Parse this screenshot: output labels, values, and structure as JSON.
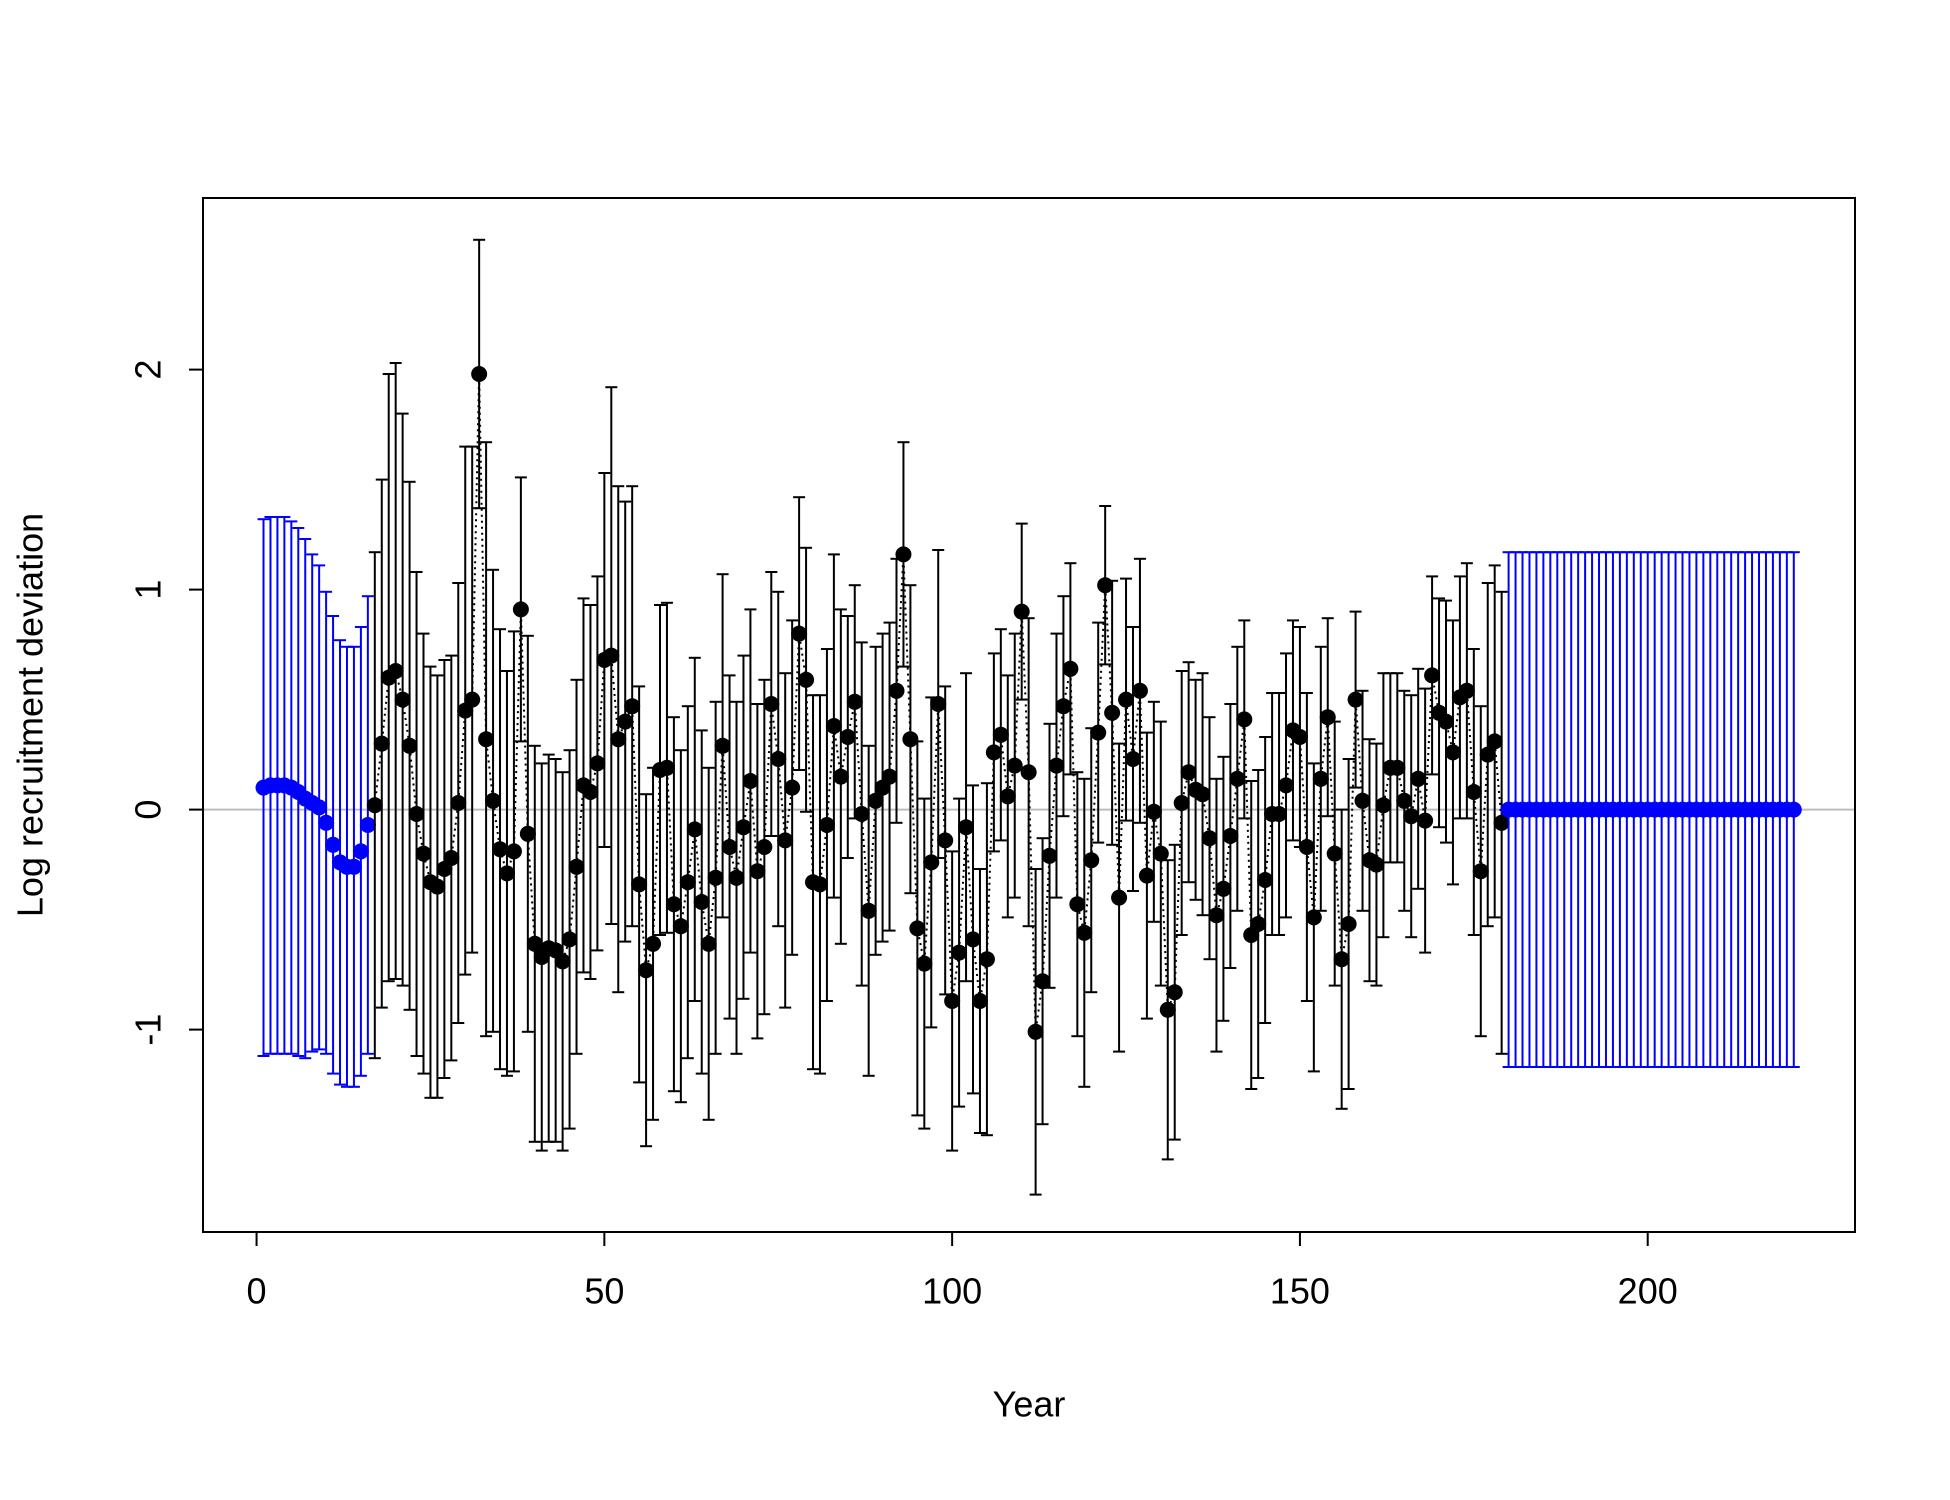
{
  "chart_data": {
    "type": "errorbar",
    "x_label": "Year",
    "y_label": "Log recruitment deviation",
    "xlim": [
      -7.7,
      229.8
    ],
    "ylim": [
      -1.92,
      2.78
    ],
    "xticks": [
      0,
      50,
      100,
      150,
      200
    ],
    "yticks": [
      -1,
      0,
      1,
      2
    ],
    "hline": 0,
    "hline_color": "#bebebe",
    "series": [
      {
        "color": "#0000ff",
        "line": false,
        "x": [
          1,
          2,
          3,
          4,
          5,
          6,
          7,
          8,
          9,
          10,
          11,
          12,
          13,
          14,
          15,
          16
        ],
        "values": [
          0.1,
          0.11,
          0.11,
          0.11,
          0.1,
          0.08,
          0.05,
          0.03,
          0.01,
          -0.06,
          -0.16,
          -0.24,
          -0.26,
          -0.26,
          -0.19,
          -0.07
        ],
        "errors": [
          1.22,
          1.22,
          1.22,
          1.22,
          1.21,
          1.2,
          1.18,
          1.13,
          1.1,
          1.05,
          1.04,
          1.01,
          1.0,
          1.0,
          1.02,
          1.04
        ]
      },
      {
        "color": "#000000",
        "line": true,
        "linestyle": "dotted",
        "x": [
          17,
          18,
          19,
          20,
          21,
          22,
          23,
          24,
          25,
          26,
          27,
          28,
          29,
          30,
          31,
          32,
          33,
          34,
          35,
          36,
          37,
          38,
          39,
          40,
          41,
          42,
          43,
          44,
          45,
          46,
          47,
          48,
          49,
          50,
          51,
          52,
          53,
          54,
          55,
          56,
          57,
          58,
          59,
          60,
          61,
          62,
          63,
          64,
          65,
          66,
          67,
          68,
          69,
          70,
          71,
          72,
          73,
          74,
          75,
          76,
          77,
          78,
          79,
          80,
          81,
          82,
          83,
          84,
          85,
          86,
          87,
          88,
          89,
          90,
          91,
          92,
          93,
          94,
          95,
          96,
          97,
          98,
          99,
          100,
          101,
          102,
          103,
          104,
          105,
          106,
          107,
          108,
          109,
          110,
          111,
          112,
          113,
          114,
          115,
          116,
          117,
          118,
          119,
          120,
          121,
          122,
          123,
          124,
          125,
          126,
          127,
          128,
          129,
          130,
          131,
          132,
          133,
          134,
          135,
          136,
          137,
          138,
          139,
          140,
          141,
          142,
          143,
          144,
          145,
          146,
          147,
          148,
          149,
          150,
          151,
          152,
          153,
          154,
          155,
          156,
          157,
          158,
          159,
          160,
          161,
          162,
          163,
          164,
          165,
          166,
          167,
          168,
          169,
          170,
          171,
          172,
          173,
          174,
          175,
          176,
          177,
          178,
          179
        ],
        "values": [
          0.02,
          0.3,
          0.6,
          0.63,
          0.5,
          0.29,
          -0.02,
          -0.2,
          -0.33,
          -0.35,
          -0.27,
          -0.22,
          0.03,
          0.45,
          0.5,
          1.98,
          0.32,
          0.04,
          -0.18,
          -0.29,
          -0.19,
          0.91,
          -0.11,
          -0.61,
          -0.67,
          -0.63,
          -0.64,
          -0.69,
          -0.59,
          -0.26,
          0.11,
          0.08,
          0.21,
          0.68,
          0.7,
          0.32,
          0.4,
          0.47,
          -0.34,
          -0.73,
          -0.61,
          0.18,
          0.19,
          -0.43,
          -0.53,
          -0.33,
          -0.09,
          -0.42,
          -0.61,
          -0.31,
          0.29,
          -0.17,
          -0.31,
          -0.08,
          0.13,
          -0.28,
          -0.17,
          0.48,
          0.23,
          -0.14,
          0.1,
          0.8,
          0.59,
          -0.33,
          -0.34,
          -0.07,
          0.38,
          0.15,
          0.33,
          0.49,
          -0.02,
          -0.46,
          0.04,
          0.1,
          0.15,
          0.54,
          1.16,
          0.32,
          -0.54,
          -0.7,
          -0.24,
          0.48,
          -0.14,
          -0.87,
          -0.65,
          -0.08,
          -0.59,
          -0.87,
          -0.68,
          0.26,
          0.34,
          0.06,
          0.2,
          0.9,
          0.17,
          -1.01,
          -0.78,
          -0.21,
          0.2,
          0.47,
          0.64,
          -0.43,
          -0.56,
          -0.23,
          0.35,
          1.02,
          0.44,
          -0.4,
          0.5,
          0.23,
          0.54,
          -0.3,
          -0.01,
          -0.2,
          -0.91,
          -0.83,
          0.03,
          0.17,
          0.09,
          0.07,
          -0.13,
          -0.48,
          -0.36,
          -0.12,
          0.14,
          0.41,
          -0.57,
          -0.52,
          -0.32,
          -0.02,
          -0.02,
          0.11,
          0.36,
          0.33,
          -0.17,
          -0.49,
          0.14,
          0.42,
          -0.2,
          -0.68,
          -0.52,
          0.5,
          0.04,
          -0.23,
          -0.25,
          0.02,
          0.19,
          0.19,
          0.04,
          -0.03,
          0.14,
          -0.05,
          0.61,
          0.44,
          0.4,
          0.26,
          0.51,
          0.54,
          0.08,
          -0.28,
          0.25,
          0.31,
          -0.06
        ],
        "errors": [
          1.15,
          1.2,
          1.38,
          1.4,
          1.3,
          1.2,
          1.1,
          1.0,
          0.98,
          0.96,
          0.95,
          0.92,
          1.0,
          1.2,
          1.15,
          0.61,
          1.35,
          1.05,
          1.0,
          0.92,
          1.0,
          0.6,
          0.9,
          0.9,
          0.88,
          0.88,
          0.87,
          0.86,
          0.86,
          0.85,
          0.85,
          0.85,
          0.85,
          0.85,
          1.22,
          1.15,
          1.0,
          1.0,
          0.9,
          0.8,
          0.8,
          0.75,
          0.75,
          0.85,
          0.8,
          0.8,
          0.78,
          0.78,
          0.8,
          0.8,
          0.78,
          0.78,
          0.8,
          0.78,
          0.78,
          0.76,
          0.76,
          0.6,
          0.76,
          0.76,
          0.76,
          0.62,
          0.6,
          0.85,
          0.86,
          0.8,
          0.78,
          0.76,
          0.55,
          0.53,
          0.78,
          0.75,
          0.7,
          0.7,
          0.7,
          0.6,
          0.51,
          0.7,
          0.85,
          0.75,
          0.75,
          0.7,
          0.7,
          0.68,
          0.7,
          0.7,
          0.7,
          0.6,
          0.8,
          0.45,
          0.48,
          0.55,
          0.6,
          0.4,
          0.7,
          0.74,
          0.65,
          0.6,
          0.6,
          0.5,
          0.48,
          0.6,
          0.7,
          0.6,
          0.5,
          0.36,
          0.6,
          0.7,
          0.55,
          0.6,
          0.6,
          0.65,
          0.5,
          0.6,
          0.68,
          0.67,
          0.6,
          0.5,
          0.5,
          0.55,
          0.55,
          0.62,
          0.6,
          0.6,
          0.6,
          0.45,
          0.7,
          0.7,
          0.65,
          0.55,
          0.55,
          0.6,
          0.5,
          0.5,
          0.7,
          0.7,
          0.6,
          0.45,
          0.6,
          0.68,
          0.75,
          0.4,
          0.5,
          0.55,
          0.55,
          0.6,
          0.43,
          0.43,
          0.5,
          0.55,
          0.5,
          0.6,
          0.45,
          0.52,
          0.55,
          0.6,
          0.55,
          0.58,
          0.65,
          0.75,
          0.78,
          0.8,
          1.05
        ]
      },
      {
        "color": "#0000ff",
        "line": false,
        "x": [
          180,
          181,
          182,
          183,
          184,
          185,
          186,
          187,
          188,
          189,
          190,
          191,
          192,
          193,
          194,
          195,
          196,
          197,
          198,
          199,
          200,
          201,
          202,
          203,
          204,
          205,
          206,
          207,
          208,
          209,
          210,
          211,
          212,
          213,
          214,
          215,
          216,
          217,
          218,
          219,
          220,
          221
        ],
        "values": [
          0,
          0,
          0,
          0,
          0,
          0,
          0,
          0,
          0,
          0,
          0,
          0,
          0,
          0,
          0,
          0,
          0,
          0,
          0,
          0,
          0,
          0,
          0,
          0,
          0,
          0,
          0,
          0,
          0,
          0,
          0,
          0,
          0,
          0,
          0,
          0,
          0,
          0,
          0,
          0,
          0,
          0
        ],
        "errors": [
          1.17,
          1.17,
          1.17,
          1.17,
          1.17,
          1.17,
          1.17,
          1.17,
          1.17,
          1.17,
          1.17,
          1.17,
          1.17,
          1.17,
          1.17,
          1.17,
          1.17,
          1.17,
          1.17,
          1.17,
          1.17,
          1.17,
          1.17,
          1.17,
          1.17,
          1.17,
          1.17,
          1.17,
          1.17,
          1.17,
          1.17,
          1.17,
          1.17,
          1.17,
          1.17,
          1.17,
          1.17,
          1.17,
          1.17,
          1.17,
          1.17,
          1.17
        ]
      }
    ]
  }
}
